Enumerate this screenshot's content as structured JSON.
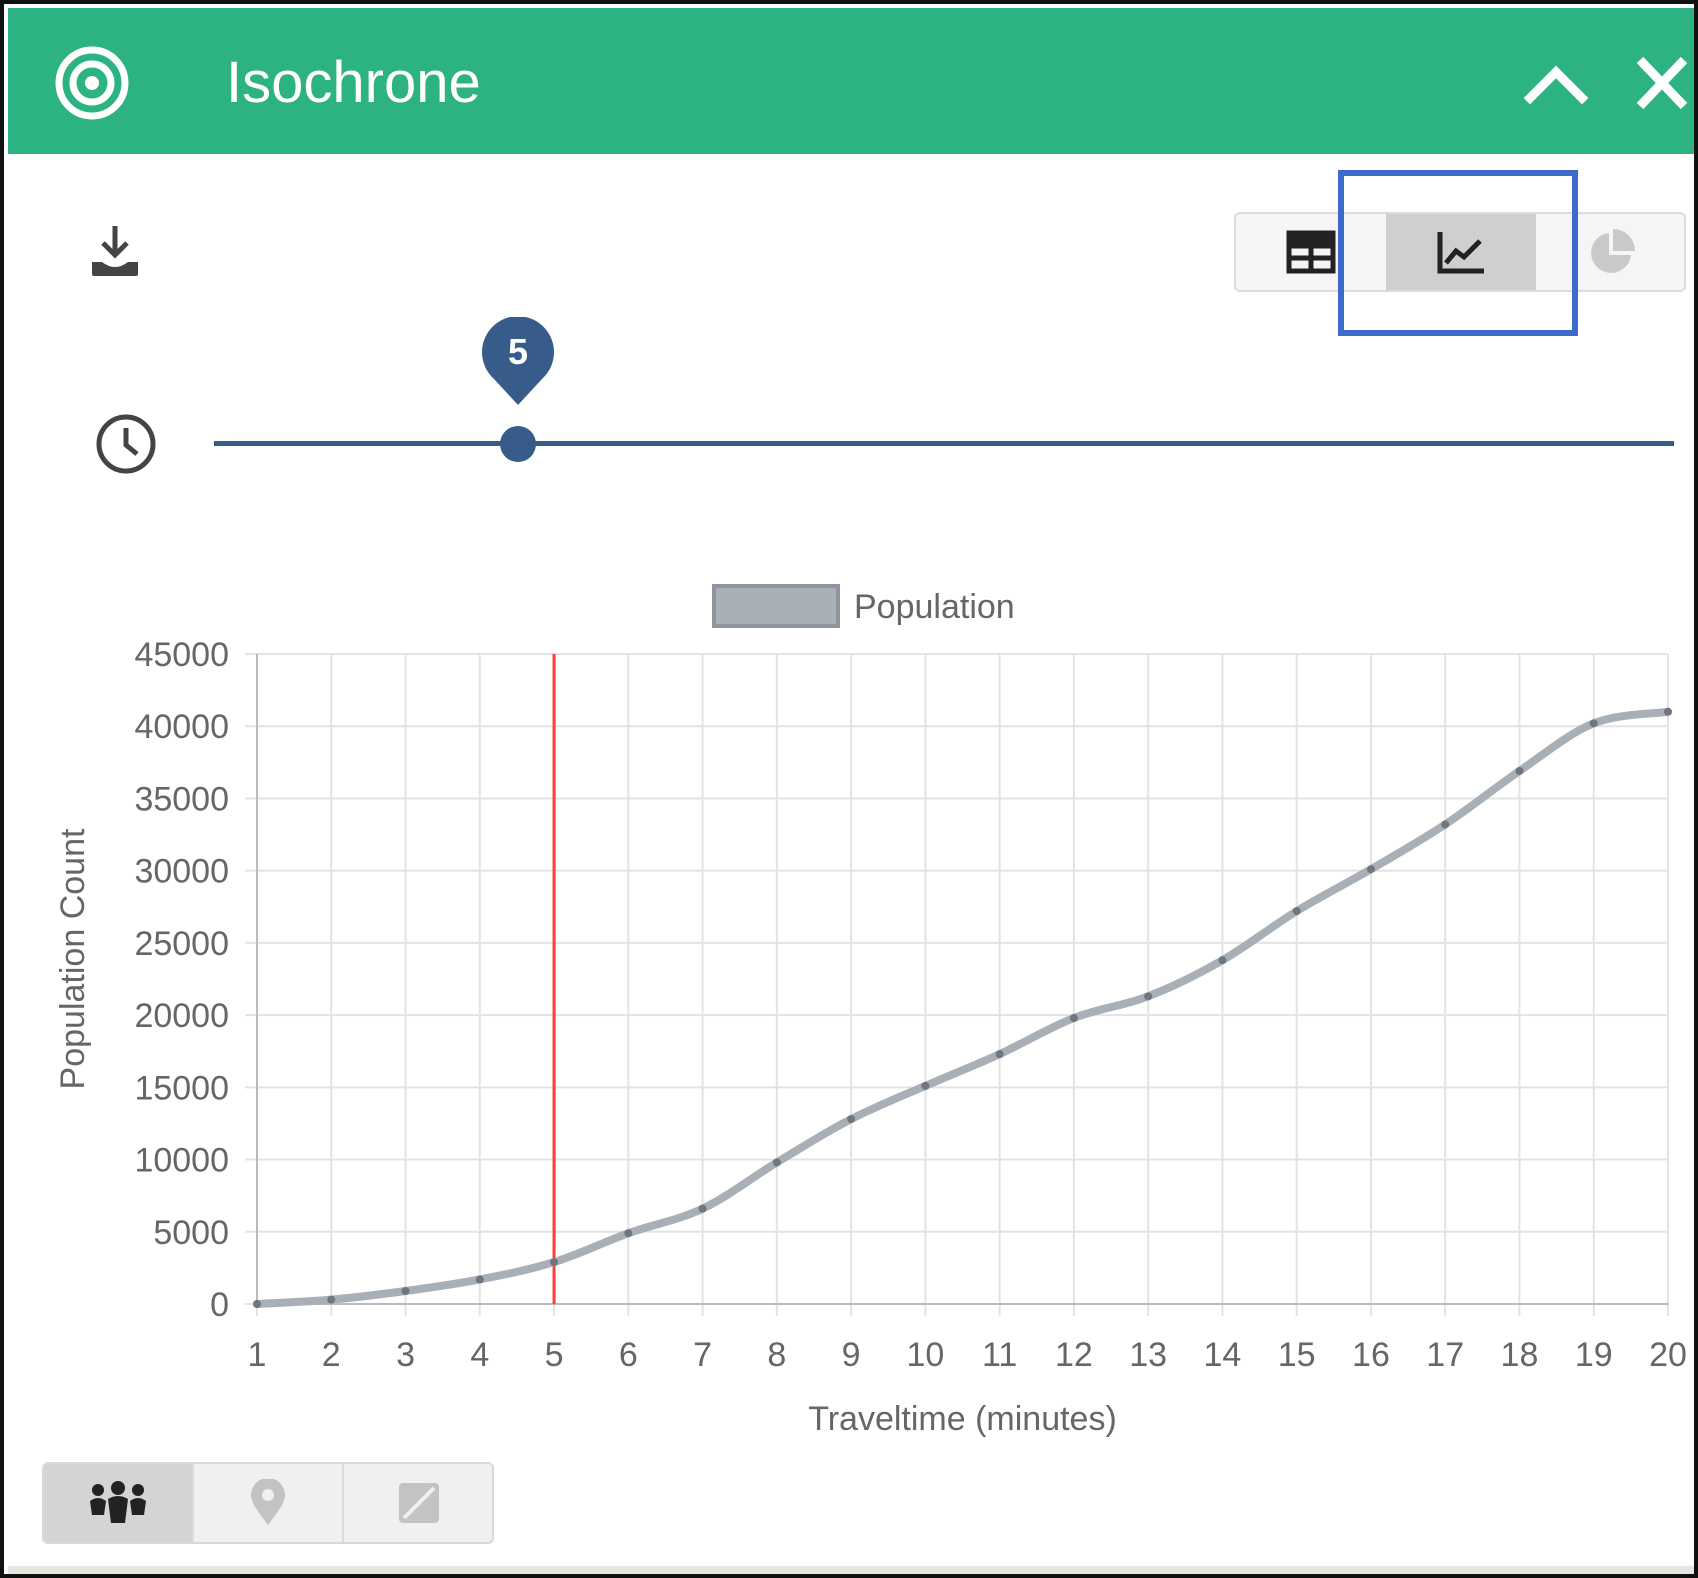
{
  "window": {
    "title": "Isochrone"
  },
  "icons": {
    "logo": "target-icon",
    "collapse": "chevron-up-icon",
    "close": "close-icon",
    "download": "download-icon",
    "table_view": "table-icon",
    "chart_view": "line-chart-icon",
    "pie_view": "pie-chart-icon",
    "clock": "clock-icon",
    "population": "people-icon",
    "poi": "map-pin-icon",
    "landuse": "leaf-icon"
  },
  "view_toggle": {
    "active": "chart"
  },
  "metric_toggle": {
    "active": "population"
  },
  "slider": {
    "value": "5",
    "min": 1,
    "max": 20
  },
  "colors": {
    "header": "#2db381",
    "slider": "#375c89",
    "series_line": "#a9afb7",
    "marker_line": "#ff3b3b",
    "highlight": "#3b6bc7"
  },
  "chart_data": {
    "type": "line",
    "title": "",
    "xlabel": "Traveltime (minutes)",
    "ylabel": "Population Count",
    "x": [
      1,
      2,
      3,
      4,
      5,
      6,
      7,
      8,
      9,
      10,
      11,
      12,
      13,
      14,
      15,
      16,
      17,
      18,
      19,
      20
    ],
    "series": [
      {
        "name": "Population",
        "values": [
          0,
          300,
          900,
          1700,
          2900,
          4900,
          6600,
          9800,
          12800,
          15100,
          17300,
          19800,
          21300,
          23800,
          27200,
          30100,
          33200,
          36900,
          40200,
          41000
        ]
      }
    ],
    "ylim": [
      0,
      45000
    ],
    "yticks": [
      0,
      5000,
      10000,
      15000,
      20000,
      25000,
      30000,
      35000,
      40000,
      45000
    ],
    "marker_x": 5,
    "grid": true,
    "legend_position": "top-center"
  }
}
